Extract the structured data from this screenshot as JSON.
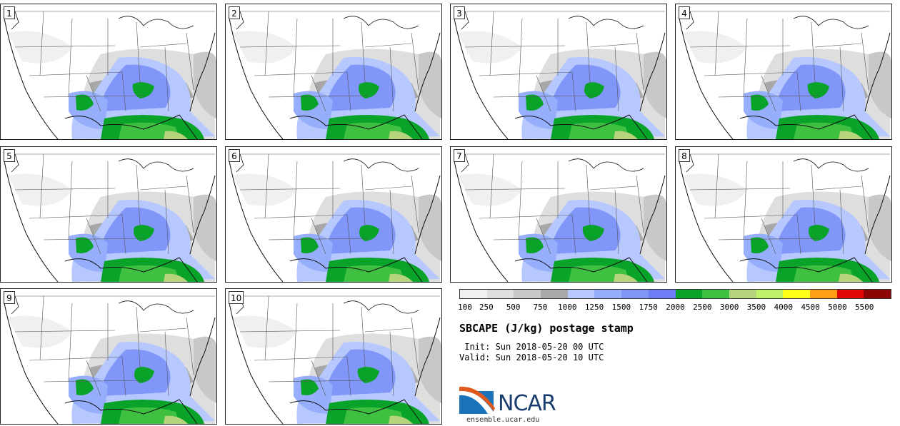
{
  "panels": [
    {
      "label": "1"
    },
    {
      "label": "2"
    },
    {
      "label": "3"
    },
    {
      "label": "4"
    },
    {
      "label": "5"
    },
    {
      "label": "6"
    },
    {
      "label": "7"
    },
    {
      "label": "8"
    },
    {
      "label": "9"
    },
    {
      "label": "10"
    }
  ],
  "colorbar": {
    "colors": [
      "#f0f0f0",
      "#dedede",
      "#c8c8c8",
      "#a8a8a8",
      "#b7c8ff",
      "#96aefc",
      "#8096f9",
      "#6e7df6",
      "#0aa32a",
      "#40c040",
      "#b5d47c",
      "#bff26b",
      "#ffff1a",
      "#ff9f16",
      "#e10505",
      "#8d0606"
    ],
    "ticks": [
      "100",
      "250",
      "500",
      "750",
      "1000",
      "1250",
      "1500",
      "1750",
      "2000",
      "2500",
      "3000",
      "3500",
      "4000",
      "4500",
      "5000",
      "5500"
    ]
  },
  "title": "SBCAPE (J/kg) postage stamp",
  "init": " Init: Sun 2018-05-20 00 UTC",
  "valid": "Valid: Sun 2018-05-20 10 UTC",
  "logo": {
    "text": "NCAR",
    "url": "ensemble.ucar.edu",
    "color": "#1a3d6e"
  }
}
